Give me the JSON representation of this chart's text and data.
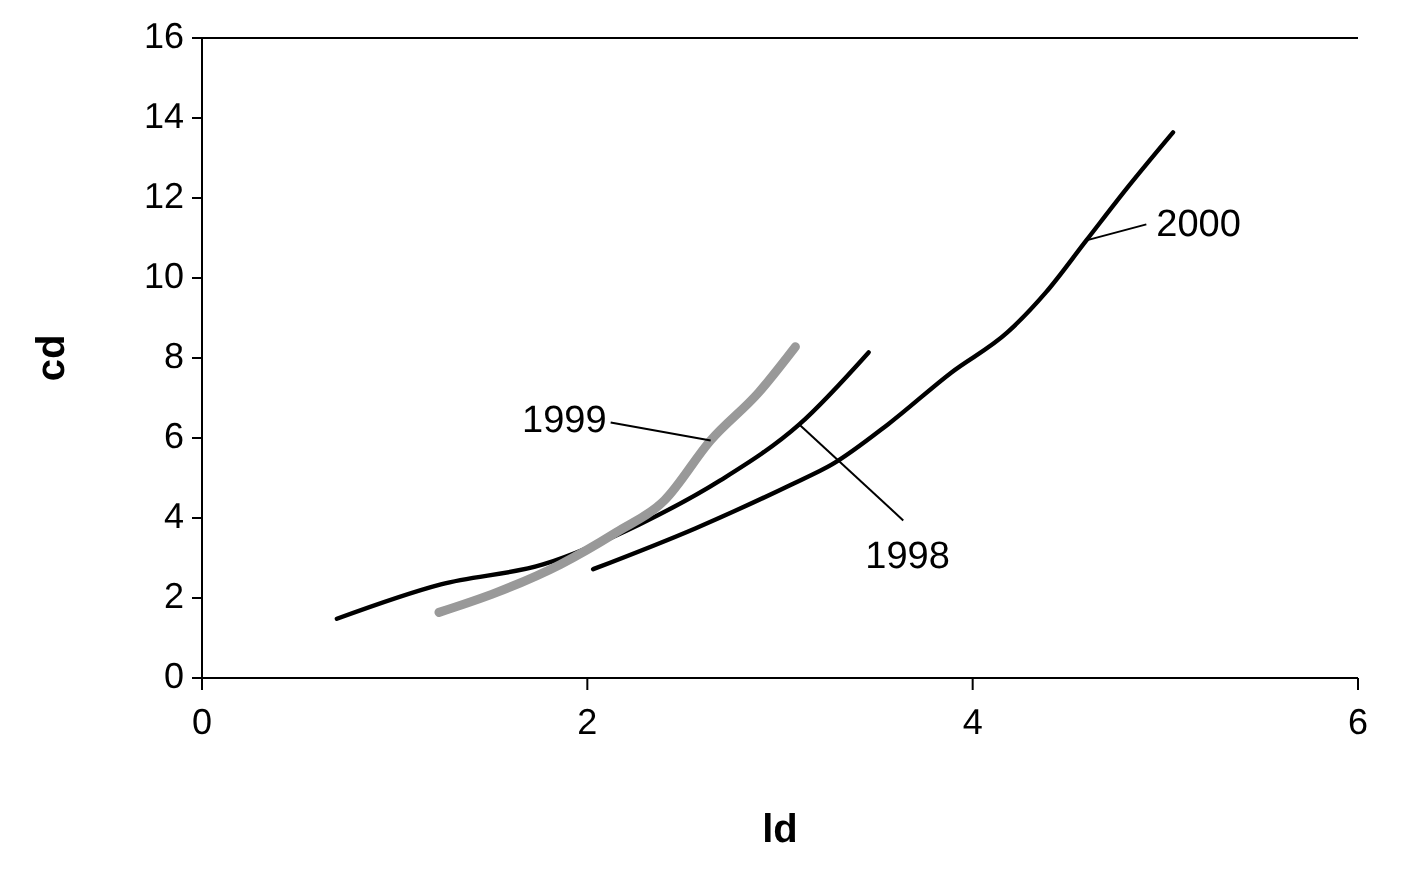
{
  "chart_data": {
    "type": "line",
    "xlabel": "ld",
    "ylabel": "cd",
    "xlim": [
      0,
      6
    ],
    "xticks": [
      0,
      2,
      4,
      6
    ],
    "ylim": [
      0,
      16
    ],
    "yticks": [
      0,
      2,
      4,
      6,
      8,
      10,
      12,
      14,
      16
    ],
    "grid": false,
    "marker": "none",
    "line_style": "solid",
    "series": [
      {
        "name": "1998",
        "color": "#000000",
        "x": [
          0.7,
          1.24,
          1.77,
          2.27,
          2.69,
          3.1,
          3.46
        ],
        "values": [
          1.48,
          2.34,
          2.84,
          3.84,
          4.94,
          6.34,
          8.14
        ]
      },
      {
        "name": "1999",
        "color": "#999999",
        "x": [
          1.23,
          1.53,
          1.86,
          2.15,
          2.4,
          2.64,
          2.89,
          3.08
        ],
        "values": [
          1.64,
          2.14,
          2.84,
          3.64,
          4.44,
          5.94,
          7.14,
          8.28
        ]
      },
      {
        "name": "2000",
        "color": "#000000",
        "x": [
          2.03,
          2.56,
          3.06,
          3.27,
          3.56,
          3.89,
          4.18,
          4.38,
          4.59,
          4.8,
          5.04
        ],
        "values": [
          2.72,
          3.74,
          4.84,
          5.34,
          6.34,
          7.64,
          8.64,
          9.64,
          10.94,
          12.24,
          13.64
        ]
      }
    ]
  }
}
